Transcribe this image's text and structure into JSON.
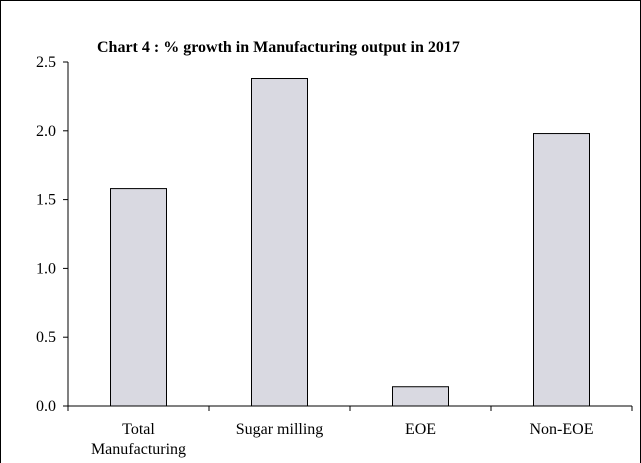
{
  "chart_data": {
    "type": "bar",
    "title": "Chart 4 : % growth in Manufacturing output in 2017",
    "categories": [
      "Total Manufacturing",
      "Sugar milling",
      "EOE",
      "Non-EOE"
    ],
    "category_lines": [
      [
        "Total",
        "Manufacturing"
      ],
      [
        "Sugar milling"
      ],
      [
        "EOE"
      ],
      [
        "Non-EOE"
      ]
    ],
    "values": [
      1.58,
      2.38,
      0.14,
      1.98
    ],
    "xlabel": "",
    "ylabel": "",
    "ylim": [
      0,
      2.5
    ],
    "yticks": [
      "0.0",
      "0.5",
      "1.0",
      "1.5",
      "2.0",
      "2.5"
    ],
    "grid": false,
    "bar_color": "#d9d9e1",
    "bar_edge_color": "#000000"
  }
}
